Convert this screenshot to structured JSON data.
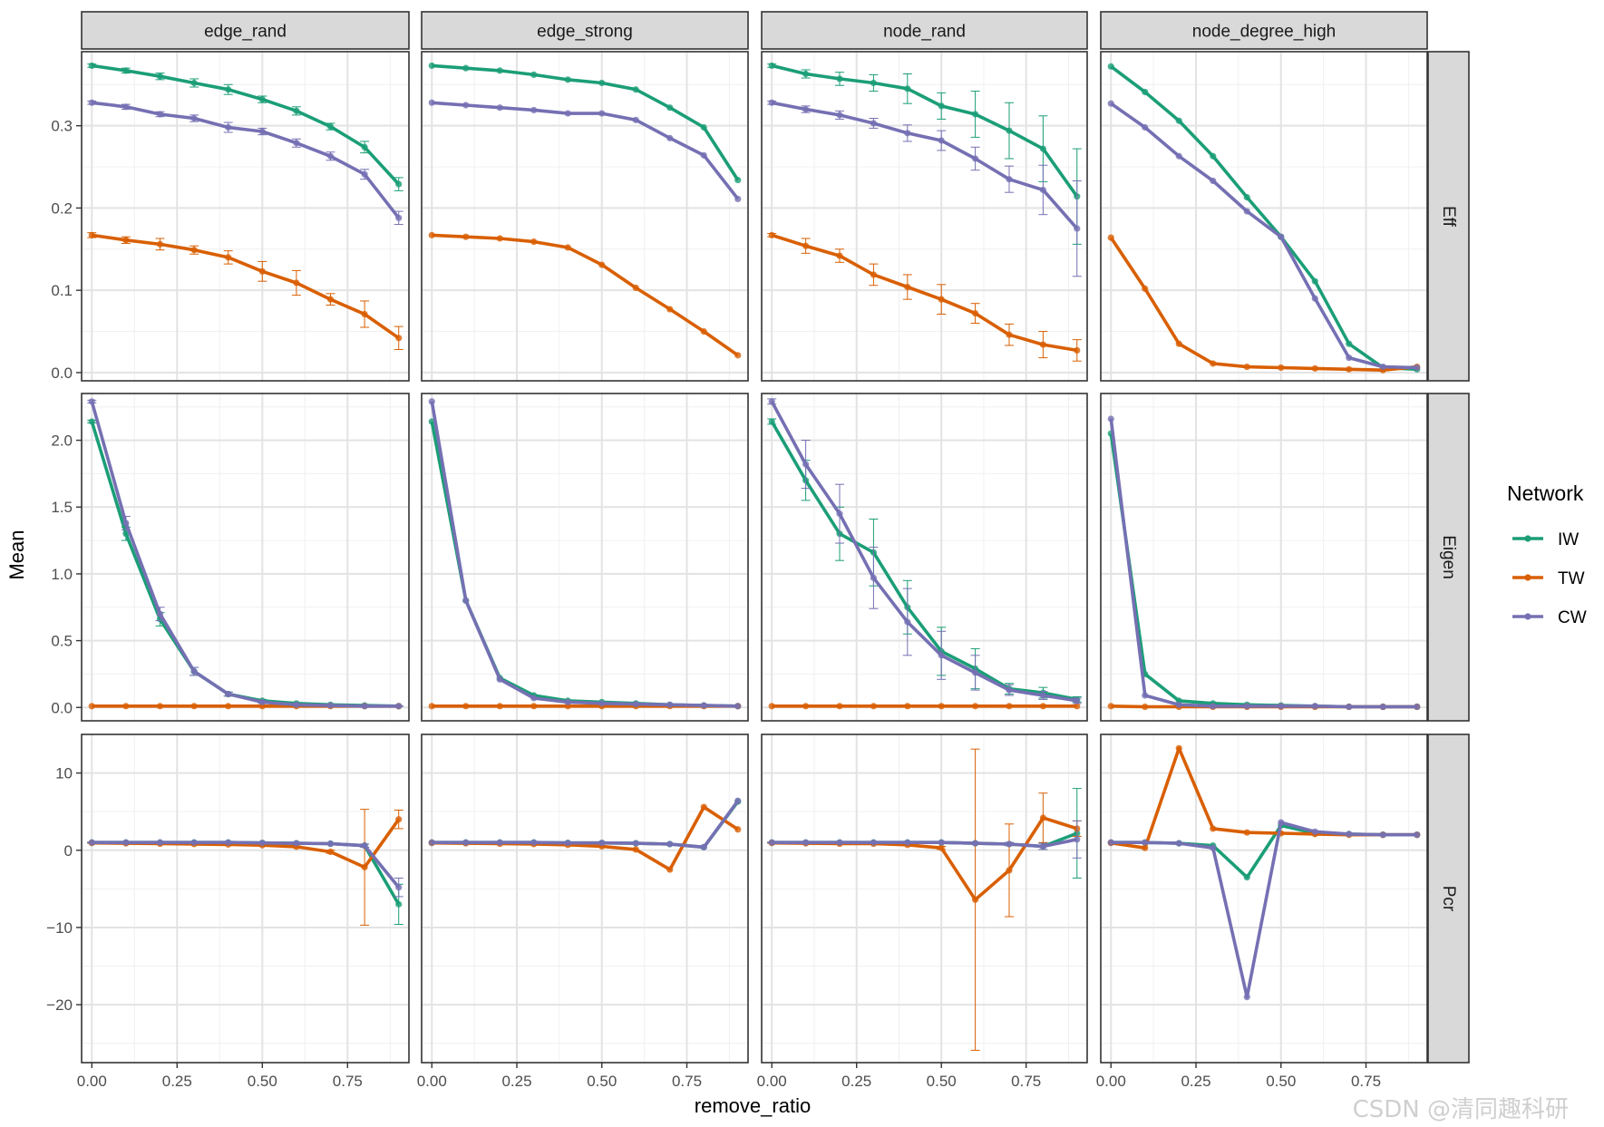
{
  "chart_data": {
    "type": "line",
    "layout": "facet_grid",
    "xlabel": "remove_ratio",
    "ylabel": "Mean",
    "x": [
      0,
      0.1,
      0.2,
      0.3,
      0.4,
      0.5,
      0.6,
      0.7,
      0.8,
      0.9
    ],
    "xlim": [
      -0.03,
      0.93
    ],
    "x_ticks": [
      0,
      0.25,
      0.5,
      0.75
    ],
    "x_tick_labels": [
      "0.00",
      "0.25",
      "0.50",
      "0.75"
    ],
    "columns": [
      "edge_rand",
      "edge_strong",
      "node_rand",
      "node_degree_high"
    ],
    "rows": [
      {
        "name": "Eff",
        "ylim": [
          -0.01,
          0.39
        ],
        "ticks": [
          0,
          0.1,
          0.2,
          0.3
        ],
        "tick_labels": [
          "0.0",
          "0.1",
          "0.2",
          "0.3"
        ]
      },
      {
        "name": "Eigen",
        "ylim": [
          -0.1,
          2.35
        ],
        "ticks": [
          0,
          0.5,
          1,
          1.5,
          2
        ],
        "tick_labels": [
          "0.0",
          "0.5",
          "1.0",
          "1.5",
          "2.0"
        ]
      },
      {
        "name": "Pcr",
        "ylim": [
          -27.5,
          15
        ],
        "ticks": [
          -20,
          -10,
          0,
          10
        ],
        "tick_labels": [
          "−20",
          "−10",
          "0",
          "10"
        ]
      }
    ],
    "legend": {
      "title": "Network",
      "position": "right",
      "entries": [
        "IW",
        "TW",
        "CW"
      ]
    },
    "colors": {
      "IW": "#1b9e77",
      "TW": "#d95f02",
      "CW": "#7570b3"
    },
    "grid": true,
    "panels": {
      "Eff": {
        "edge_rand": {
          "IW": {
            "values": [
              0.373,
              0.367,
              0.36,
              0.352,
              0.344,
              0.332,
              0.318,
              0.299,
              0.274,
              0.229
            ],
            "err": [
              0.002,
              0.003,
              0.004,
              0.005,
              0.006,
              0.004,
              0.005,
              0.004,
              0.007,
              0.008
            ]
          },
          "TW": {
            "values": [
              0.167,
              0.161,
              0.156,
              0.149,
              0.14,
              0.123,
              0.109,
              0.089,
              0.071,
              0.042
            ],
            "err": [
              0.003,
              0.004,
              0.007,
              0.005,
              0.008,
              0.012,
              0.015,
              0.007,
              0.016,
              0.014
            ]
          },
          "CW": {
            "values": [
              0.328,
              0.323,
              0.314,
              0.309,
              0.298,
              0.293,
              0.279,
              0.263,
              0.241,
              0.188
            ],
            "err": [
              0.002,
              0.003,
              0.003,
              0.004,
              0.006,
              0.004,
              0.005,
              0.005,
              0.006,
              0.008
            ]
          }
        },
        "edge_strong": {
          "IW": {
            "values": [
              0.373,
              0.37,
              0.367,
              0.362,
              0.356,
              0.352,
              0.344,
              0.322,
              0.298,
              0.234
            ],
            "err": null
          },
          "TW": {
            "values": [
              0.167,
              0.165,
              0.163,
              0.159,
              0.152,
              0.131,
              0.103,
              0.077,
              0.05,
              0.021
            ],
            "err": null
          },
          "CW": {
            "values": [
              0.328,
              0.325,
              0.322,
              0.319,
              0.315,
              0.315,
              0.307,
              0.285,
              0.264,
              0.211
            ],
            "err": null
          }
        },
        "node_rand": {
          "IW": {
            "values": [
              0.373,
              0.363,
              0.357,
              0.352,
              0.345,
              0.324,
              0.314,
              0.294,
              0.272,
              0.214
            ],
            "err": [
              0.002,
              0.005,
              0.008,
              0.01,
              0.018,
              0.016,
              0.028,
              0.034,
              0.04,
              0.058
            ]
          },
          "TW": {
            "values": [
              0.167,
              0.154,
              0.142,
              0.119,
              0.104,
              0.089,
              0.072,
              0.046,
              0.034,
              0.027
            ],
            "err": [
              0.002,
              0.009,
              0.008,
              0.013,
              0.015,
              0.018,
              0.012,
              0.013,
              0.016,
              0.013
            ]
          },
          "CW": {
            "values": [
              0.328,
              0.32,
              0.313,
              0.303,
              0.291,
              0.282,
              0.26,
              0.235,
              0.222,
              0.175
            ],
            "err": [
              0.002,
              0.004,
              0.005,
              0.006,
              0.01,
              0.012,
              0.014,
              0.016,
              0.03,
              0.058
            ]
          }
        },
        "node_degree_high": {
          "IW": {
            "values": [
              0.372,
              0.341,
              0.306,
              0.263,
              0.213,
              0.165,
              0.111,
              0.035,
              0.006,
              0.004
            ],
            "err": null
          },
          "TW": {
            "values": [
              0.164,
              0.102,
              0.035,
              0.011,
              0.007,
              0.006,
              0.005,
              0.004,
              0.003,
              0.007
            ],
            "err": null
          },
          "CW": {
            "values": [
              0.327,
              0.298,
              0.263,
              0.233,
              0.196,
              0.165,
              0.09,
              0.018,
              0.007,
              0.006
            ],
            "err": null
          }
        }
      },
      "Eigen": {
        "edge_rand": {
          "IW": {
            "values": [
              2.14,
              1.3,
              0.66,
              0.27,
              0.1,
              0.05,
              0.03,
              0.02,
              0.015,
              0.01
            ],
            "err": [
              0.01,
              0.05,
              0.05,
              0.03,
              0.015,
              0.01,
              0.005,
              0.004,
              0.003,
              0.002
            ]
          },
          "TW": {
            "values": [
              0.01,
              0.01,
              0.01,
              0.01,
              0.01,
              0.01,
              0.01,
              0.01,
              0.01,
              0.01
            ],
            "err": null
          },
          "CW": {
            "values": [
              2.29,
              1.38,
              0.7,
              0.27,
              0.1,
              0.04,
              0.02,
              0.015,
              0.01,
              0.01
            ],
            "err": [
              0.01,
              0.05,
              0.05,
              0.03,
              0.015,
              0.01,
              0.005,
              0.004,
              0.003,
              0.002
            ]
          }
        },
        "edge_strong": {
          "IW": {
            "values": [
              2.14,
              0.8,
              0.22,
              0.09,
              0.05,
              0.04,
              0.03,
              0.02,
              0.015,
              0.01
            ],
            "err": null
          },
          "TW": {
            "values": [
              0.01,
              0.01,
              0.01,
              0.01,
              0.01,
              0.01,
              0.01,
              0.01,
              0.01,
              0.01
            ],
            "err": null
          },
          "CW": {
            "values": [
              2.29,
              0.8,
              0.21,
              0.07,
              0.04,
              0.03,
              0.025,
              0.02,
              0.015,
              0.01
            ],
            "err": null
          }
        },
        "node_rand": {
          "IW": {
            "values": [
              2.14,
              1.7,
              1.3,
              1.16,
              0.75,
              0.42,
              0.29,
              0.14,
              0.11,
              0.06
            ],
            "err": [
              0.02,
              0.15,
              0.2,
              0.25,
              0.2,
              0.18,
              0.15,
              0.04,
              0.04,
              0.02
            ]
          },
          "TW": {
            "values": [
              0.01,
              0.01,
              0.01,
              0.01,
              0.01,
              0.01,
              0.01,
              0.01,
              0.01,
              0.01
            ],
            "err": null
          },
          "CW": {
            "values": [
              2.29,
              1.82,
              1.45,
              0.97,
              0.64,
              0.39,
              0.26,
              0.13,
              0.09,
              0.05
            ],
            "err": [
              0.02,
              0.18,
              0.22,
              0.23,
              0.25,
              0.18,
              0.13,
              0.04,
              0.03,
              0.02
            ]
          }
        },
        "node_degree_high": {
          "IW": {
            "values": [
              2.05,
              0.25,
              0.05,
              0.03,
              0.02,
              0.015,
              0.01,
              0.005,
              0.005,
              0.005
            ],
            "err": null
          },
          "TW": {
            "values": [
              0.01,
              0.005,
              0.005,
              0.005,
              0.005,
              0.005,
              0.005,
              0.005,
              0.005,
              0.005
            ],
            "err": null
          },
          "CW": {
            "values": [
              2.16,
              0.09,
              0.02,
              0.01,
              0.01,
              0.01,
              0.01,
              0.005,
              0.005,
              0.005
            ],
            "err": null
          }
        }
      },
      "Pcr": {
        "edge_rand": {
          "IW": {
            "values": [
              1.0,
              1.0,
              1.0,
              1.0,
              1.0,
              0.95,
              0.9,
              0.85,
              0.6,
              -7.0
            ],
            "err": [
              0.05,
              0.05,
              0.05,
              0.05,
              0.05,
              0.05,
              0.05,
              0.1,
              0.2,
              2.6
            ]
          },
          "TW": {
            "values": [
              0.95,
              0.9,
              0.85,
              0.8,
              0.75,
              0.65,
              0.45,
              -0.2,
              -2.2,
              4.0
            ],
            "err": [
              0.05,
              0.05,
              0.05,
              0.05,
              0.05,
              0.05,
              0.1,
              0.2,
              7.5,
              1.2
            ]
          },
          "CW": {
            "values": [
              1.0,
              1.0,
              1.0,
              1.0,
              1.0,
              0.95,
              0.9,
              0.85,
              0.6,
              -4.8
            ],
            "err": [
              0.05,
              0.05,
              0.05,
              0.05,
              0.05,
              0.05,
              0.05,
              0.1,
              0.2,
              1.2
            ]
          }
        },
        "edge_strong": {
          "IW": {
            "values": [
              1.0,
              1.0,
              1.0,
              1.0,
              0.95,
              0.95,
              0.9,
              0.8,
              0.4,
              6.3
            ],
            "err": null
          },
          "TW": {
            "values": [
              0.95,
              0.9,
              0.85,
              0.8,
              0.7,
              0.5,
              0.1,
              -2.5,
              5.6,
              2.7
            ],
            "err": null
          },
          "CW": {
            "values": [
              1.0,
              1.0,
              1.0,
              1.0,
              0.95,
              0.95,
              0.9,
              0.8,
              0.4,
              6.4
            ],
            "err": null
          }
        },
        "node_rand": {
          "IW": {
            "values": [
              1.0,
              1.0,
              1.0,
              1.0,
              1.0,
              1.0,
              0.9,
              0.8,
              0.5,
              2.2
            ],
            "err": [
              0.05,
              0.05,
              0.05,
              0.05,
              0.05,
              0.05,
              0.1,
              0.2,
              0.4,
              5.8
            ]
          },
          "TW": {
            "values": [
              0.95,
              0.9,
              0.85,
              0.85,
              0.7,
              0.3,
              -6.4,
              -2.6,
              4.2,
              2.8
            ],
            "err": [
              0.05,
              0.05,
              0.05,
              0.05,
              0.1,
              0.2,
              19.5,
              6.0,
              3.2,
              1.0
            ]
          },
          "CW": {
            "values": [
              1.0,
              1.0,
              1.0,
              1.0,
              1.0,
              1.0,
              0.9,
              0.8,
              0.5,
              1.4
            ],
            "err": [
              0.05,
              0.05,
              0.05,
              0.05,
              0.05,
              0.05,
              0.1,
              0.2,
              0.4,
              2.4
            ]
          }
        },
        "node_degree_high": {
          "IW": {
            "values": [
              1.0,
              1.0,
              0.9,
              0.6,
              -3.5,
              3.2,
              2.2,
              2.1,
              2.0,
              2.0
            ],
            "err": null
          },
          "TW": {
            "values": [
              0.95,
              0.3,
              13.2,
              2.8,
              2.3,
              2.2,
              2.1,
              2.0,
              2.0,
              2.0
            ],
            "err": null
          },
          "CW": {
            "values": [
              1.0,
              1.0,
              0.9,
              0.3,
              -19.0,
              3.6,
              2.4,
              2.1,
              2.0,
              2.0
            ],
            "err": null
          }
        }
      }
    }
  },
  "watermark": "CSDN @清同趣科研"
}
